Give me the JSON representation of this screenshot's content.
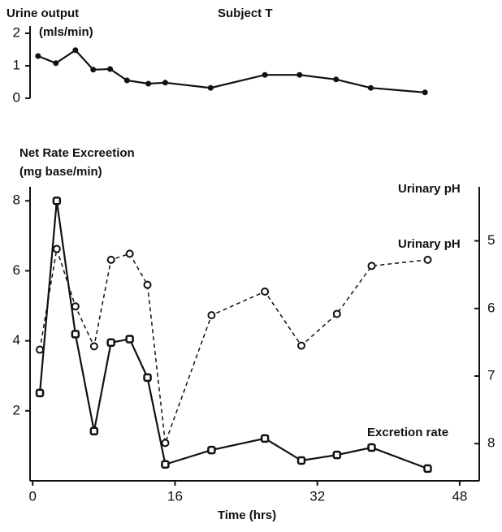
{
  "chart_data": [
    {
      "type": "line",
      "title": "Subject T",
      "ylabel": [
        "Urine output",
        "(mls/min)"
      ],
      "x": [
        0.6,
        2.6,
        4.8,
        6.8,
        8.7,
        10.6,
        13,
        14.9,
        20,
        26.1,
        30,
        34.1,
        38,
        44.1
      ],
      "series": [
        {
          "color": "#111111",
          "marker": "dot",
          "dash": false,
          "values": [
            1.3,
            1.08,
            1.48,
            0.88,
            0.9,
            0.55,
            0.45,
            0.48,
            0.32,
            0.72,
            0.72,
            0.58,
            0.32,
            0.18
          ]
        }
      ],
      "xlim": [
        -0.3,
        50.2
      ],
      "ylim": [
        0,
        2
      ],
      "yticks": [
        0,
        1,
        2
      ]
    },
    {
      "type": "line",
      "ylabel": [
        "Net Rate Excreetion",
        "(mg base/min)"
      ],
      "y2label": "Urinary pH",
      "xlabel": "Time (hrs)",
      "x": [
        0.8,
        2.7,
        4.8,
        6.9,
        8.8,
        10.9,
        12.9,
        14.9,
        20.1,
        26.1,
        30.2,
        34.2,
        38.1,
        44.4
      ],
      "series": [
        {
          "name": "Urinary pH",
          "axis": "y2",
          "color": "#111111",
          "marker": "circle",
          "dash": true,
          "values": [
            6.61,
            5.12,
            5.97,
            6.56,
            5.28,
            5.19,
            5.65,
            7.99,
            6.1,
            5.75,
            6.55,
            6.08,
            5.37,
            5.28
          ]
        },
        {
          "name": "Excretion rate",
          "color": "#111111",
          "marker": "square",
          "dash": false,
          "values": [
            2.51,
            8.0,
            4.19,
            1.42,
            3.95,
            4.05,
            2.95,
            0.47,
            0.88,
            1.21,
            0.58,
            0.74,
            0.95,
            0.35
          ]
        }
      ],
      "xlim": [
        -0.3,
        50.2
      ],
      "xticks": [
        0,
        16,
        32,
        48
      ],
      "ylim": [
        0,
        8.4
      ],
      "yticks": [
        2,
        4,
        6,
        8
      ],
      "y2lim": [
        8.55,
        4.2
      ],
      "y2ticks": [
        5,
        6,
        7,
        8
      ]
    }
  ]
}
